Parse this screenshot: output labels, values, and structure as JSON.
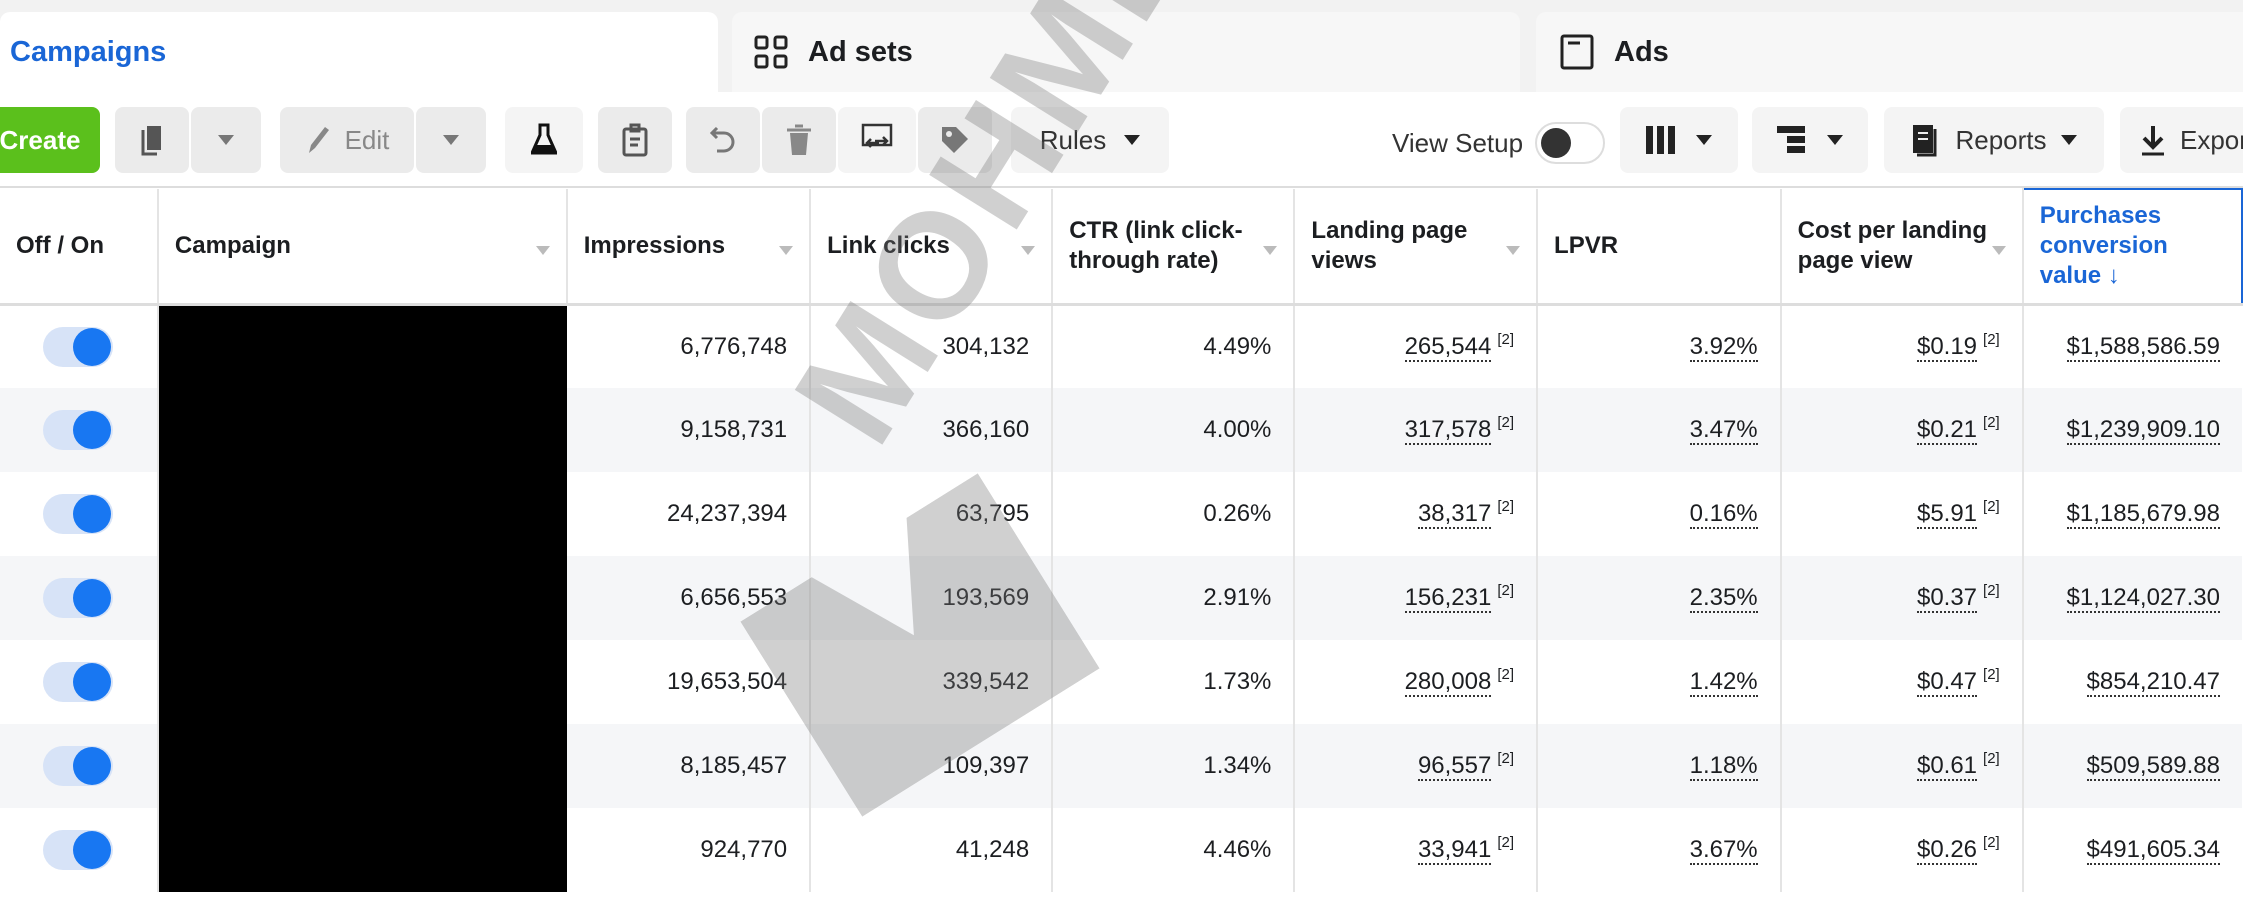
{
  "tabs": [
    {
      "label": "Campaigns",
      "icon": "folder-icon",
      "active": true
    },
    {
      "label": "Ad sets",
      "icon": "grid-icon"
    },
    {
      "label": "Ads",
      "icon": "ad-window-icon"
    }
  ],
  "toolbar": {
    "create": "Create",
    "edit": "Edit",
    "rules": "Rules",
    "view_setup": "View Setup",
    "view_setup_on": false,
    "reports": "Reports",
    "export": "Export"
  },
  "table": {
    "headers": [
      "Off / On",
      "Campaign",
      "Impressions",
      "Link clicks",
      "CTR (link click-through rate)",
      "Landing page views",
      "LPVR",
      "Cost per landing page view",
      "Purchases conversion value ↓"
    ],
    "footnote": "[2]",
    "rows": [
      {
        "on": true,
        "impressions": "6,776,748",
        "clicks": "304,132",
        "ctr": "4.49%",
        "lpv": "265,544",
        "lpvr": "3.92%",
        "cplpv": "$0.19",
        "pcv": "$1,588,586.59"
      },
      {
        "on": true,
        "impressions": "9,158,731",
        "clicks": "366,160",
        "ctr": "4.00%",
        "lpv": "317,578",
        "lpvr": "3.47%",
        "cplpv": "$0.21",
        "pcv": "$1,239,909.10"
      },
      {
        "on": true,
        "impressions": "24,237,394",
        "clicks": "63,795",
        "ctr": "0.26%",
        "lpv": "38,317",
        "lpvr": "0.16%",
        "cplpv": "$5.91",
        "pcv": "$1,185,679.98"
      },
      {
        "on": true,
        "impressions": "6,656,553",
        "clicks": "193,569",
        "ctr": "2.91%",
        "lpv": "156,231",
        "lpvr": "2.35%",
        "cplpv": "$0.37",
        "pcv": "$1,124,027.30"
      },
      {
        "on": true,
        "impressions": "19,653,504",
        "clicks": "339,542",
        "ctr": "1.73%",
        "lpv": "280,008",
        "lpvr": "1.42%",
        "cplpv": "$0.47",
        "pcv": "$854,210.47"
      },
      {
        "on": true,
        "impressions": "8,185,457",
        "clicks": "109,397",
        "ctr": "1.34%",
        "lpv": "96,557",
        "lpvr": "1.18%",
        "cplpv": "$0.61",
        "pcv": "$509,589.88"
      },
      {
        "on": true,
        "impressions": "924,770",
        "clicks": "41,248",
        "ctr": "4.46%",
        "lpv": "33,941",
        "lpvr": "3.67%",
        "cplpv": "$0.26",
        "pcv": "$491,605.34"
      }
    ]
  },
  "watermark": "MOHMEDIA",
  "colors": {
    "accent": "#1a66d6",
    "create": "#5bc01c",
    "toggle": "#1877f2"
  }
}
